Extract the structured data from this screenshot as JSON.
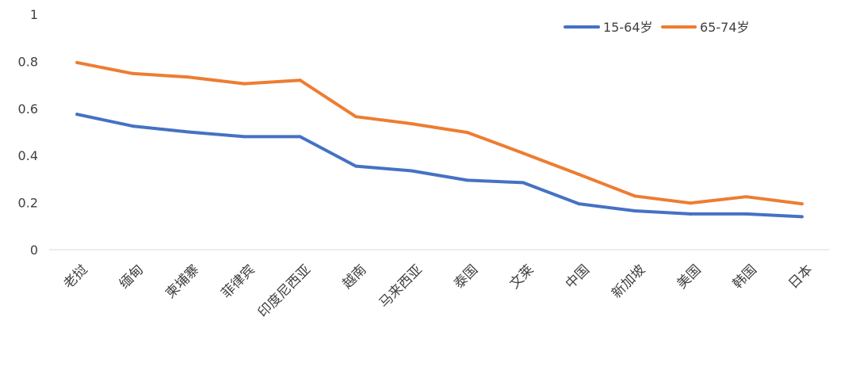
{
  "chart_data": {
    "type": "line",
    "title": "",
    "xlabel": "",
    "ylabel": "",
    "ylim": [
      0,
      1
    ],
    "yticks": [
      0,
      0.2,
      0.4,
      0.6,
      0.8,
      1
    ],
    "ytick_labels": [
      "0",
      "0.2",
      "0.4",
      "0.6",
      "0.8",
      "1"
    ],
    "grid": false,
    "legend_position": "top-right",
    "categories": [
      "老挝",
      "缅甸",
      "柬埔寨",
      "菲律宾",
      "印度尼西亚",
      "越南",
      "马来西亚",
      "泰国",
      "文莱",
      "中国",
      "新加坡",
      "美国",
      "韩国",
      "日本"
    ],
    "series": [
      {
        "name": "15-64岁",
        "color": "#4472C4",
        "values": [
          0.575,
          0.525,
          0.5,
          0.48,
          0.48,
          0.355,
          0.335,
          0.295,
          0.285,
          0.195,
          0.165,
          0.152,
          0.152,
          0.14
        ]
      },
      {
        "name": "65-74岁",
        "color": "#ED7D31",
        "values": [
          0.795,
          0.748,
          0.733,
          0.705,
          0.72,
          0.565,
          0.535,
          0.498,
          0.41,
          0.32,
          0.228,
          0.198,
          0.225,
          0.195
        ]
      }
    ]
  }
}
